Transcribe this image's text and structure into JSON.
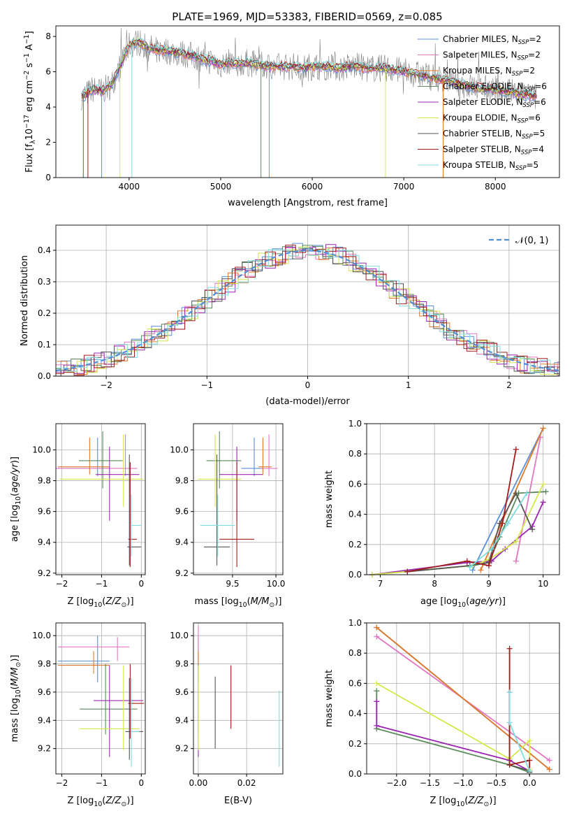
{
  "title": "PLATE=1969, MJD=53383, FIBERID=0569, z=0.085",
  "colors": {
    "chabrier_miles": "#5b8fd6",
    "salpeter_miles": "#e377c2",
    "kroupa_miles": "#e07a2a",
    "chabrier_elodie": "#5a8a5a",
    "salpeter_elodie": "#9b27b0",
    "kroupa_elodie": "#d4e84a",
    "chabrier_stelib": "#555555",
    "salpeter_stelib": "#a11c1c",
    "kroupa_stelib": "#7fdde0"
  },
  "chart_data": [
    {
      "id": "spectrum",
      "type": "line",
      "title": "PLATE=1969, MJD=53383, FIBERID=0569, z=0.085",
      "xlabel": "wavelength [Angstrom, rest frame]",
      "ylabel": "Flux [f_λ 10^-17 erg cm^-2 s^-1 A^-1]",
      "xlim": [
        3200,
        8700
      ],
      "ylim": [
        0,
        8.6
      ],
      "xticks": [
        "4000",
        "5000",
        "6000",
        "7000",
        "8000"
      ],
      "yticks": [
        "0",
        "2",
        "4",
        "6",
        "8"
      ],
      "legend": [
        "Chabrier MILES, N_SSP=2",
        "Salpeter MILES, N_SSP=2",
        "Kroupa MILES, N_SSP=2",
        "Chabrier ELODIE, N_SSP=6",
        "Salpeter ELODIE, N_SSP=6",
        "Kroupa ELODIE, N_SSP=6",
        "Chabrier STELIB, N_SSP=5",
        "Salpeter STELIB, N_SSP=4",
        "Kroupa STELIB, N_SSP=5"
      ],
      "model_curve": {
        "wavelength": [
          3500,
          3550,
          3600,
          3700,
          3800,
          3900,
          4000,
          4100,
          4200,
          4300,
          4400,
          4500,
          4600,
          4700,
          4800,
          4900,
          5000,
          5100,
          5200,
          5300,
          5400,
          5500,
          5600,
          5700,
          5800,
          5900,
          6000,
          6100,
          6200,
          6300,
          6400,
          6500,
          6600,
          6700,
          6800,
          6900,
          7000,
          7100,
          7200,
          7300,
          7400,
          7500,
          7600,
          7700,
          7800,
          7900,
          8000,
          8100,
          8200,
          8300,
          8400
        ],
        "flux": [
          4.6,
          4.8,
          5.0,
          4.9,
          5.2,
          6.3,
          7.5,
          7.7,
          7.4,
          7.2,
          7.2,
          7.1,
          7.0,
          6.9,
          6.7,
          6.6,
          6.4,
          6.5,
          6.5,
          6.5,
          6.4,
          6.3,
          6.3,
          6.3,
          6.3,
          6.2,
          6.3,
          6.3,
          6.3,
          6.2,
          6.3,
          6.3,
          6.2,
          6.2,
          6.2,
          6.1,
          6.0,
          5.9,
          5.8,
          5.7,
          5.6,
          5.5,
          5.3,
          5.2,
          5.1,
          5.0,
          5.0,
          4.9,
          4.8,
          4.7,
          4.6
        ]
      }
    },
    {
      "id": "residuals",
      "type": "line",
      "xlabel": "(data-model)/error",
      "ylabel": "Normed distribution",
      "xlim": [
        -2.5,
        2.5
      ],
      "ylim": [
        0,
        0.48
      ],
      "xticks": [
        "−2",
        "−1",
        "0",
        "1",
        "2"
      ],
      "yticks": [
        "0.0",
        "0.1",
        "0.2",
        "0.3",
        "0.4"
      ],
      "legend": [
        "𝒩(0, 1)"
      ],
      "gaussian": {
        "mean": 0,
        "sigma": 1
      }
    },
    {
      "id": "age_vs_z",
      "type": "scatter",
      "xlabel": "Z [log10(Z/Z⊙)]",
      "ylabel": "age [log10(age/yr)]",
      "xlim": [
        -2.15,
        0.1
      ],
      "ylim": [
        9.19,
        10.17
      ],
      "xticks": [
        "−2",
        "−1",
        "0"
      ],
      "yticks": [
        "9.2",
        "9.4",
        "9.6",
        "9.8",
        "10.0"
      ],
      "points": [
        {
          "model": "chabrier_miles",
          "x": -1.1,
          "xerr": [
            1.0,
            0.3
          ],
          "y": 9.88,
          "yerr": [
            0.05,
            0.2
          ]
        },
        {
          "model": "salpeter_miles",
          "x": -0.4,
          "xerr": [
            1.75,
            0.3
          ],
          "y": 9.88,
          "yerr": [
            0.05,
            0.22
          ]
        },
        {
          "model": "kroupa_miles",
          "x": -1.3,
          "xerr": [
            0.8,
            0.5
          ],
          "y": 9.89,
          "yerr": [
            0.05,
            0.19
          ]
        },
        {
          "model": "chabrier_elodie",
          "x": -0.97,
          "xerr": [
            0.6,
            0.5
          ],
          "y": 9.93,
          "yerr": [
            0.18,
            0.19
          ]
        },
        {
          "model": "salpeter_elodie",
          "x": -0.8,
          "xerr": [
            0.35,
            0.75
          ],
          "y": 9.84,
          "yerr": [
            0.3,
            0.18
          ]
        },
        {
          "model": "kroupa_elodie",
          "x": -0.45,
          "xerr": [
            1.6,
            0.5
          ],
          "y": 9.81,
          "yerr": [
            0.18,
            0.29
          ]
        },
        {
          "model": "chabrier_stelib",
          "x": -0.3,
          "xerr": [
            0.05,
            0.3
          ],
          "y": 9.37,
          "yerr": [
            0.12,
            0.6
          ]
        },
        {
          "model": "salpeter_stelib",
          "x": -0.28,
          "xerr": [
            0.05,
            0.17
          ],
          "y": 9.42,
          "yerr": [
            0.18,
            0.5
          ]
        },
        {
          "model": "kroupa_stelib",
          "x": -0.25,
          "xerr": [
            0.0,
            0.25
          ],
          "y": 9.51,
          "yerr": [
            0.2,
            0.2
          ]
        }
      ]
    },
    {
      "id": "age_vs_mass",
      "type": "scatter",
      "xlabel": "mass [log10(M/M⊙)]",
      "xlim": [
        9.05,
        10.08
      ],
      "ylim": [
        9.19,
        10.17
      ],
      "xticks": [
        "9.5",
        "10.0"
      ],
      "yticks": [
        "9.2",
        "9.4",
        "9.6",
        "9.8",
        "10.0"
      ],
      "points": [
        {
          "model": "chabrier_miles",
          "x": 9.75,
          "xerr": [
            0.15,
            0.1
          ],
          "y": 9.88,
          "yerr": [
            0.05,
            0.2
          ]
        },
        {
          "model": "salpeter_miles",
          "x": 9.92,
          "xerr": [
            0.1,
            0.1
          ],
          "y": 9.88,
          "yerr": [
            0.05,
            0.22
          ]
        },
        {
          "model": "kroupa_miles",
          "x": 9.85,
          "xerr": [
            0.05,
            0.1
          ],
          "y": 9.89,
          "yerr": [
            0.05,
            0.19
          ]
        },
        {
          "model": "chabrier_elodie",
          "x": 9.35,
          "xerr": [
            0.15,
            0.25
          ],
          "y": 9.93,
          "yerr": [
            0.18,
            0.19
          ]
        },
        {
          "model": "salpeter_elodie",
          "x": 9.55,
          "xerr": [
            0.2,
            0.3
          ],
          "y": 9.84,
          "yerr": [
            0.3,
            0.18
          ]
        },
        {
          "model": "kroupa_elodie",
          "x": 9.3,
          "xerr": [
            0.2,
            0.3
          ],
          "y": 9.81,
          "yerr": [
            0.18,
            0.29
          ]
        },
        {
          "model": "chabrier_stelib",
          "x": 9.32,
          "xerr": [
            0.15,
            0.15
          ],
          "y": 9.37,
          "yerr": [
            0.12,
            0.6
          ]
        },
        {
          "model": "salpeter_stelib",
          "x": 9.55,
          "xerr": [
            0.2,
            0.2
          ],
          "y": 9.42,
          "yerr": [
            0.18,
            0.5
          ]
        },
        {
          "model": "kroupa_stelib",
          "x": 9.33,
          "xerr": [
            0.2,
            0.2
          ],
          "y": 9.51,
          "yerr": [
            0.2,
            0.2
          ]
        }
      ]
    },
    {
      "id": "mass_weight_vs_age",
      "type": "line",
      "xlabel": "age [log10(age/yr)]",
      "ylabel": "mass weight",
      "xlim": [
        6.75,
        10.3
      ],
      "ylim": [
        0,
        1.0
      ],
      "xticks": [
        "7",
        "8",
        "9",
        "10"
      ],
      "yticks": [
        "0.0",
        "0.2",
        "0.4",
        "0.6",
        "0.8",
        "1.0"
      ],
      "series": [
        {
          "model": "chabrier_miles",
          "x": [
            8.7,
            10.0
          ],
          "y": [
            0.03,
            0.97
          ]
        },
        {
          "model": "salpeter_miles",
          "x": [
            9.5,
            9.95
          ],
          "y": [
            0.09,
            0.91
          ]
        },
        {
          "model": "kroupa_miles",
          "x": [
            8.85,
            10.0
          ],
          "y": [
            0.03,
            0.97
          ]
        },
        {
          "model": "chabrier_elodie",
          "x": [
            6.85,
            8.7,
            9.0,
            9.2,
            9.55,
            10.05
          ],
          "y": [
            0.0,
            0.06,
            0.08,
            0.25,
            0.54,
            0.55
          ]
        },
        {
          "model": "salpeter_elodie",
          "x": [
            6.85,
            8.6,
            9.05,
            9.3,
            9.8,
            10.0
          ],
          "y": [
            0.0,
            0.08,
            0.09,
            0.17,
            0.32,
            0.48
          ]
        },
        {
          "model": "kroupa_elodie",
          "x": [
            6.85,
            8.7,
            9.0,
            9.5,
            10.0
          ],
          "y": [
            0.0,
            0.06,
            0.1,
            0.22,
            0.6
          ]
        },
        {
          "model": "chabrier_stelib",
          "x": [
            7.5,
            8.65,
            9.0,
            9.2,
            9.5,
            9.8
          ],
          "y": [
            0.02,
            0.06,
            0.08,
            0.34,
            0.54,
            0.3
          ]
        },
        {
          "model": "salpeter_stelib",
          "x": [
            7.5,
            8.6,
            9.0,
            9.25,
            9.5
          ],
          "y": [
            0.02,
            0.09,
            0.06,
            0.34,
            0.83
          ]
        },
        {
          "model": "kroupa_stelib",
          "x": [
            8.65,
            9.05,
            9.35,
            9.7
          ],
          "y": [
            0.05,
            0.17,
            0.34,
            0.54
          ]
        }
      ]
    },
    {
      "id": "mass_vs_z",
      "type": "scatter",
      "xlabel": "Z [log10(Z/Z⊙)]",
      "ylabel": "mass [log10(M/M⊙)]",
      "xlim": [
        -2.15,
        0.1
      ],
      "ylim": [
        9.02,
        10.09
      ],
      "xticks": [
        "−2",
        "−1",
        "0"
      ],
      "yticks": [
        "9.2",
        "9.4",
        "9.6",
        "9.8",
        "10.0"
      ],
      "points": [
        {
          "model": "chabrier_miles",
          "x": -1.1,
          "xerr": [
            1.0,
            0.3
          ],
          "y": 9.82,
          "yerr": [
            0.15,
            0.18
          ]
        },
        {
          "model": "salpeter_miles",
          "x": -0.6,
          "xerr": [
            1.5,
            0.3
          ],
          "y": 9.92,
          "yerr": [
            0.1,
            0.07
          ]
        },
        {
          "model": "kroupa_miles",
          "x": -1.2,
          "xerr": [
            0.9,
            0.4
          ],
          "y": 9.79,
          "yerr": [
            0.06,
            0.1
          ]
        },
        {
          "model": "chabrier_elodie",
          "x": -0.9,
          "xerr": [
            0.65,
            0.8
          ],
          "y": 9.48,
          "yerr": [
            0.18,
            0.32
          ]
        },
        {
          "model": "salpeter_elodie",
          "x": -0.8,
          "xerr": [
            0.4,
            0.85
          ],
          "y": 9.54,
          "yerr": [
            0.4,
            0.25
          ]
        },
        {
          "model": "kroupa_elodie",
          "x": -0.45,
          "xerr": [
            1.1,
            0.4
          ],
          "y": 9.34,
          "yerr": [
            0.15,
            0.45
          ]
        },
        {
          "model": "chabrier_stelib",
          "x": -0.3,
          "xerr": [
            0.1,
            0.35
          ],
          "y": 9.32,
          "yerr": [
            0.2,
            0.38
          ]
        },
        {
          "model": "salpeter_stelib",
          "x": -0.28,
          "xerr": [
            0.05,
            0.35
          ],
          "y": 9.52,
          "yerr": [
            0.25,
            0.28
          ]
        },
        {
          "model": "kroupa_stelib",
          "x": -0.25,
          "xerr": [
            0.02,
            0.2
          ],
          "y": 9.32,
          "yerr": [
            0.25,
            0.38
          ]
        }
      ]
    },
    {
      "id": "mass_vs_ebv",
      "type": "scatter",
      "xlabel": "E(B-V)",
      "xlim": [
        -0.002,
        0.035
      ],
      "ylim": [
        9.02,
        10.09
      ],
      "xticks": [
        "0.00",
        "0.02"
      ],
      "yticks": [
        "9.2",
        "9.4",
        "9.6",
        "9.8",
        "10.0"
      ],
      "points": [
        {
          "model": "chabrier_miles",
          "x": 0.0,
          "xerr": [
            0,
            0
          ],
          "y": 9.82,
          "yerr": [
            0.15,
            0.18
          ]
        },
        {
          "model": "salpeter_miles",
          "x": 0.0,
          "xerr": [
            0,
            0
          ],
          "y": 9.92,
          "yerr": [
            0.1,
            0.15
          ]
        },
        {
          "model": "kroupa_miles",
          "x": 0.0,
          "xerr": [
            0,
            0
          ],
          "y": 9.79,
          "yerr": [
            0.06,
            0.1
          ]
        },
        {
          "model": "chabrier_elodie",
          "x": 0.0,
          "xerr": [
            0,
            0
          ],
          "y": 9.48,
          "yerr": [
            0.18,
            0.32
          ]
        },
        {
          "model": "salpeter_elodie",
          "x": 0.0,
          "xerr": [
            0,
            0
          ],
          "y": 9.54,
          "yerr": [
            0.4,
            0.25
          ]
        },
        {
          "model": "kroupa_elodie",
          "x": 0.0,
          "xerr": [
            0,
            0
          ],
          "y": 9.34,
          "yerr": [
            0.15,
            0.45
          ]
        },
        {
          "model": "chabrier_stelib",
          "x": 0.007,
          "xerr": [
            0,
            0
          ],
          "y": 9.46,
          "yerr": [
            0.26,
            0.25
          ]
        },
        {
          "model": "salpeter_stelib",
          "x": 0.0135,
          "xerr": [
            0,
            0
          ],
          "y": 9.56,
          "yerr": [
            0.22,
            0.23
          ]
        },
        {
          "model": "kroupa_stelib",
          "x": 0.0335,
          "xerr": [
            0,
            0
          ],
          "y": 9.34,
          "yerr": [
            0.27,
            0.27
          ]
        }
      ]
    },
    {
      "id": "mass_weight_vs_z",
      "type": "line",
      "xlabel": "Z [log10(Z/Z⊙)]",
      "ylabel": "mass weight",
      "xlim": [
        -2.45,
        0.45
      ],
      "ylim": [
        0,
        1.0
      ],
      "xticks": [
        "−2.0",
        "−1.5",
        "−1.0",
        "−0.5",
        "0.0"
      ],
      "yticks": [
        "0.0",
        "0.2",
        "0.4",
        "0.6",
        "0.8",
        "1.0"
      ],
      "series": [
        {
          "model": "chabrier_miles",
          "x": [
            -2.3,
            0.3
          ],
          "y": [
            0.97,
            0.03
          ]
        },
        {
          "model": "salpeter_miles",
          "x": [
            -2.3,
            0.3
          ],
          "y": [
            0.91,
            0.09
          ]
        },
        {
          "model": "kroupa_miles",
          "x": [
            -2.3,
            0.3
          ],
          "y": [
            0.97,
            0.03
          ]
        },
        {
          "model": "chabrier_elodie",
          "x": [
            -2.3,
            -2.3,
            -0.3,
            0.0
          ],
          "y": [
            0.55,
            0.3,
            0.06,
            0.01
          ]
        },
        {
          "model": "salpeter_elodie",
          "x": [
            -2.3,
            -2.3,
            -0.3,
            0.0
          ],
          "y": [
            0.48,
            0.32,
            0.09,
            0.02
          ]
        },
        {
          "model": "kroupa_elodie",
          "x": [
            -2.3,
            -0.3,
            0.0,
            0.0
          ],
          "y": [
            0.6,
            0.1,
            0.22,
            0.03
          ]
        },
        {
          "model": "chabrier_stelib",
          "x": [
            -0.3,
            -0.3,
            0.0,
            0.0
          ],
          "y": [
            0.54,
            0.06,
            0.02,
            0.01
          ]
        },
        {
          "model": "salpeter_stelib",
          "x": [
            -0.3,
            -0.3,
            0.0,
            0.0
          ],
          "y": [
            0.83,
            0.06,
            0.09,
            0.02
          ]
        },
        {
          "model": "kroupa_stelib",
          "x": [
            -0.3,
            -0.3,
            0.0
          ],
          "y": [
            0.54,
            0.34,
            0.02
          ]
        }
      ]
    }
  ]
}
